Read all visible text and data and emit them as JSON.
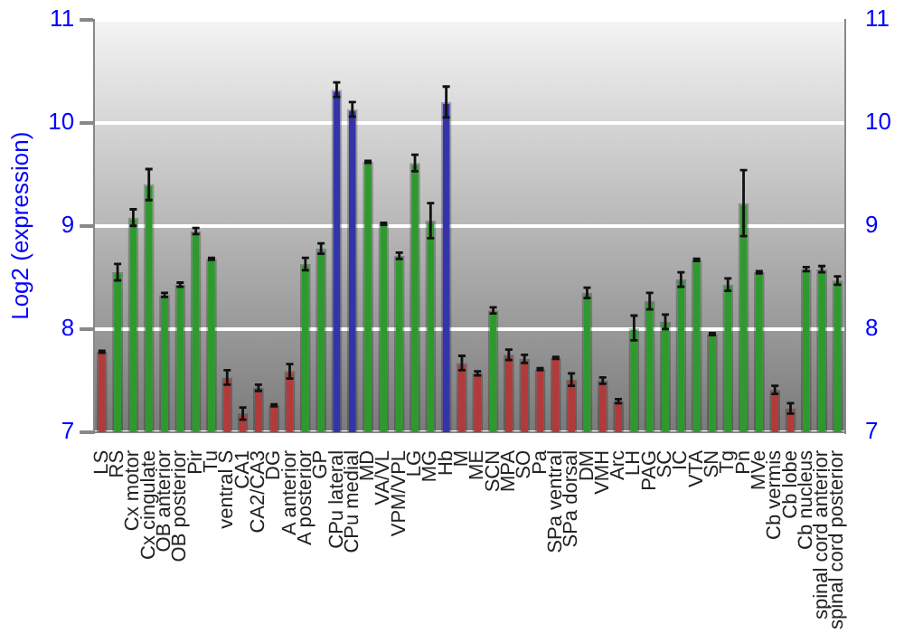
{
  "chart_data": {
    "type": "bar",
    "ylabel": "Log2 (expression)",
    "categories": [
      "LS",
      "RS",
      "Cx motor",
      "Cx cingulate",
      "OB anterior",
      "OB posterior",
      "Pir",
      "Tu",
      "ventral S",
      "CA1",
      "CA2/CA3",
      "DG",
      "A anterior",
      "A posterior",
      "GP",
      "CPu lateral",
      "CPu medial",
      "MD",
      "VA/VL",
      "VPM/VPL",
      "LG",
      "MG",
      "Hb",
      "M",
      "ME",
      "SCN",
      "MPA",
      "SO",
      "Pa",
      "SPa ventral",
      "SPa dorsal",
      "DM",
      "VMH",
      "Arc",
      "LH",
      "PAG",
      "SC",
      "IC",
      "VTA",
      "SN",
      "Tg",
      "Pn",
      "MVe",
      "Cb vermis",
      "Cb lobe",
      "Cb nucleus",
      "spinal cord anterior",
      "spinal cord posterior"
    ],
    "values": [
      7.78,
      8.55,
      9.08,
      9.4,
      8.33,
      8.43,
      8.95,
      8.68,
      7.53,
      7.18,
      7.43,
      7.26,
      7.59,
      8.63,
      8.78,
      10.32,
      10.13,
      9.62,
      9.02,
      8.71,
      9.61,
      9.05,
      10.2,
      7.67,
      7.57,
      8.18,
      7.75,
      7.71,
      7.61,
      7.72,
      7.51,
      8.35,
      7.5,
      7.3,
      8.01,
      8.27,
      8.07,
      8.48,
      8.67,
      7.95,
      8.43,
      9.22,
      8.55,
      7.41,
      7.23,
      8.58,
      8.58,
      8.47
    ],
    "errors": [
      0.01,
      0.08,
      0.08,
      0.15,
      0.02,
      0.02,
      0.03,
      0.01,
      0.07,
      0.06,
      0.03,
      0.01,
      0.07,
      0.06,
      0.05,
      0.07,
      0.07,
      0.01,
      0.01,
      0.03,
      0.08,
      0.17,
      0.15,
      0.07,
      0.02,
      0.03,
      0.05,
      0.04,
      0.01,
      0.01,
      0.06,
      0.05,
      0.03,
      0.02,
      0.12,
      0.08,
      0.07,
      0.07,
      0.01,
      0.01,
      0.06,
      0.32,
      0.01,
      0.04,
      0.05,
      0.02,
      0.03,
      0.04
    ],
    "colors": [
      "#b23a3a",
      "#2e9a2e",
      "#2e9a2e",
      "#2e9a2e",
      "#2e9a2e",
      "#2e9a2e",
      "#2e9a2e",
      "#2e9a2e",
      "#b23a3a",
      "#b23a3a",
      "#b23a3a",
      "#b23a3a",
      "#b23a3a",
      "#2e9a2e",
      "#2e9a2e",
      "#3434a8",
      "#3434a8",
      "#2e9a2e",
      "#2e9a2e",
      "#2e9a2e",
      "#2e9a2e",
      "#2e9a2e",
      "#3434a8",
      "#b23a3a",
      "#b23a3a",
      "#2e9a2e",
      "#b23a3a",
      "#b23a3a",
      "#b23a3a",
      "#b23a3a",
      "#b23a3a",
      "#2e9a2e",
      "#b23a3a",
      "#b23a3a",
      "#2e9a2e",
      "#2e9a2e",
      "#2e9a2e",
      "#2e9a2e",
      "#2e9a2e",
      "#2e9a2e",
      "#2e9a2e",
      "#2e9a2e",
      "#2e9a2e",
      "#b23a3a",
      "#b23a3a",
      "#2e9a2e",
      "#2e9a2e",
      "#2e9a2e"
    ],
    "ylim": [
      7,
      11
    ],
    "yticks": [
      7,
      8,
      9,
      10,
      11
    ],
    "y2lim": [
      7,
      11
    ],
    "y2ticks": [
      7,
      8,
      9,
      10,
      11
    ],
    "grid": "y",
    "legend": false
  }
}
